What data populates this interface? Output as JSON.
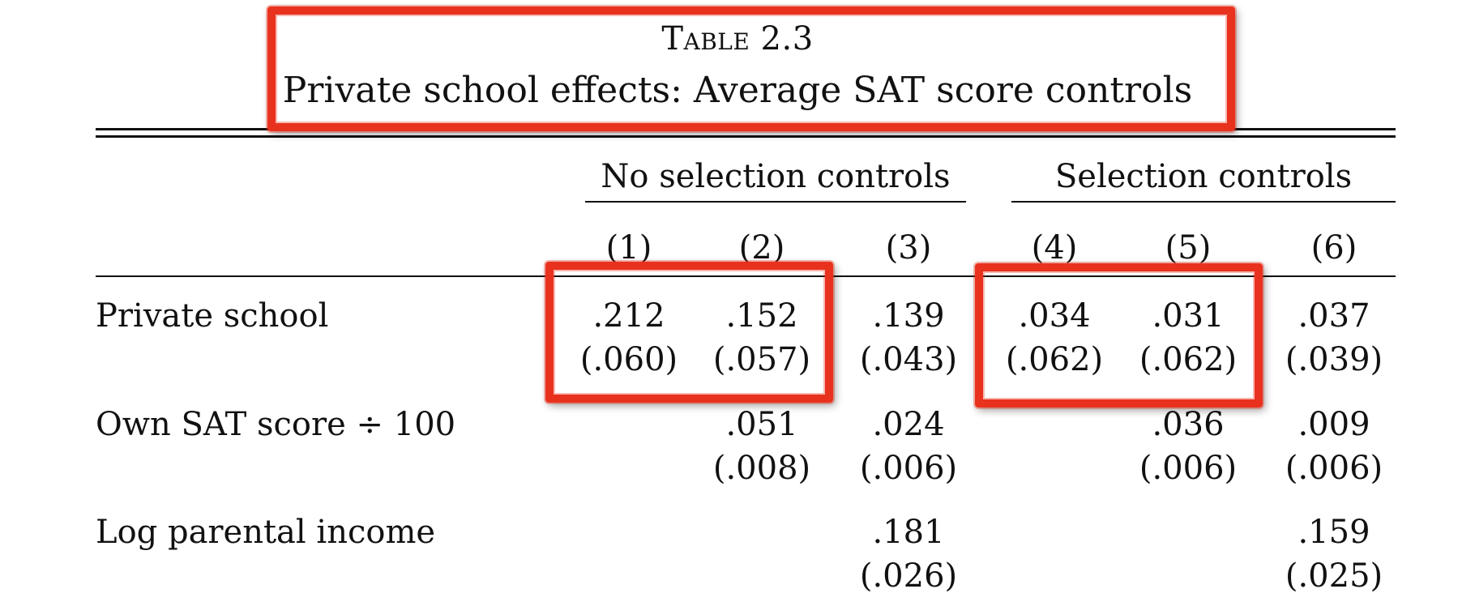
{
  "table": {
    "title_line1": "Table 2.3",
    "title_line2": "Private school effects: Average SAT score controls",
    "groups": [
      {
        "label": "No selection controls"
      },
      {
        "label": "Selection controls"
      }
    ],
    "columns": [
      "(1)",
      "(2)",
      "(3)",
      "(4)",
      "(5)",
      "(6)"
    ],
    "rows": [
      {
        "label": "Private school",
        "estimates": [
          ".212",
          ".152",
          ".139",
          ".034",
          ".031",
          ".037"
        ],
        "std_errors": [
          "(.060)",
          "(.057)",
          "(.043)",
          "(.062)",
          "(.062)",
          "(.039)"
        ]
      },
      {
        "label": "Own SAT score ÷ 100",
        "estimates": [
          "",
          ".051",
          ".024",
          "",
          ".036",
          ".009"
        ],
        "std_errors": [
          "",
          "(.008)",
          "(.006)",
          "",
          "(.006)",
          "(.006)"
        ]
      },
      {
        "label": "Log parental income",
        "estimates": [
          "",
          "",
          ".181",
          "",
          "",
          ".159"
        ],
        "std_errors": [
          "",
          "",
          "(.026)",
          "",
          "",
          "(.025)"
        ]
      }
    ]
  },
  "annotation": {
    "highlight_color": "#e8321e"
  }
}
